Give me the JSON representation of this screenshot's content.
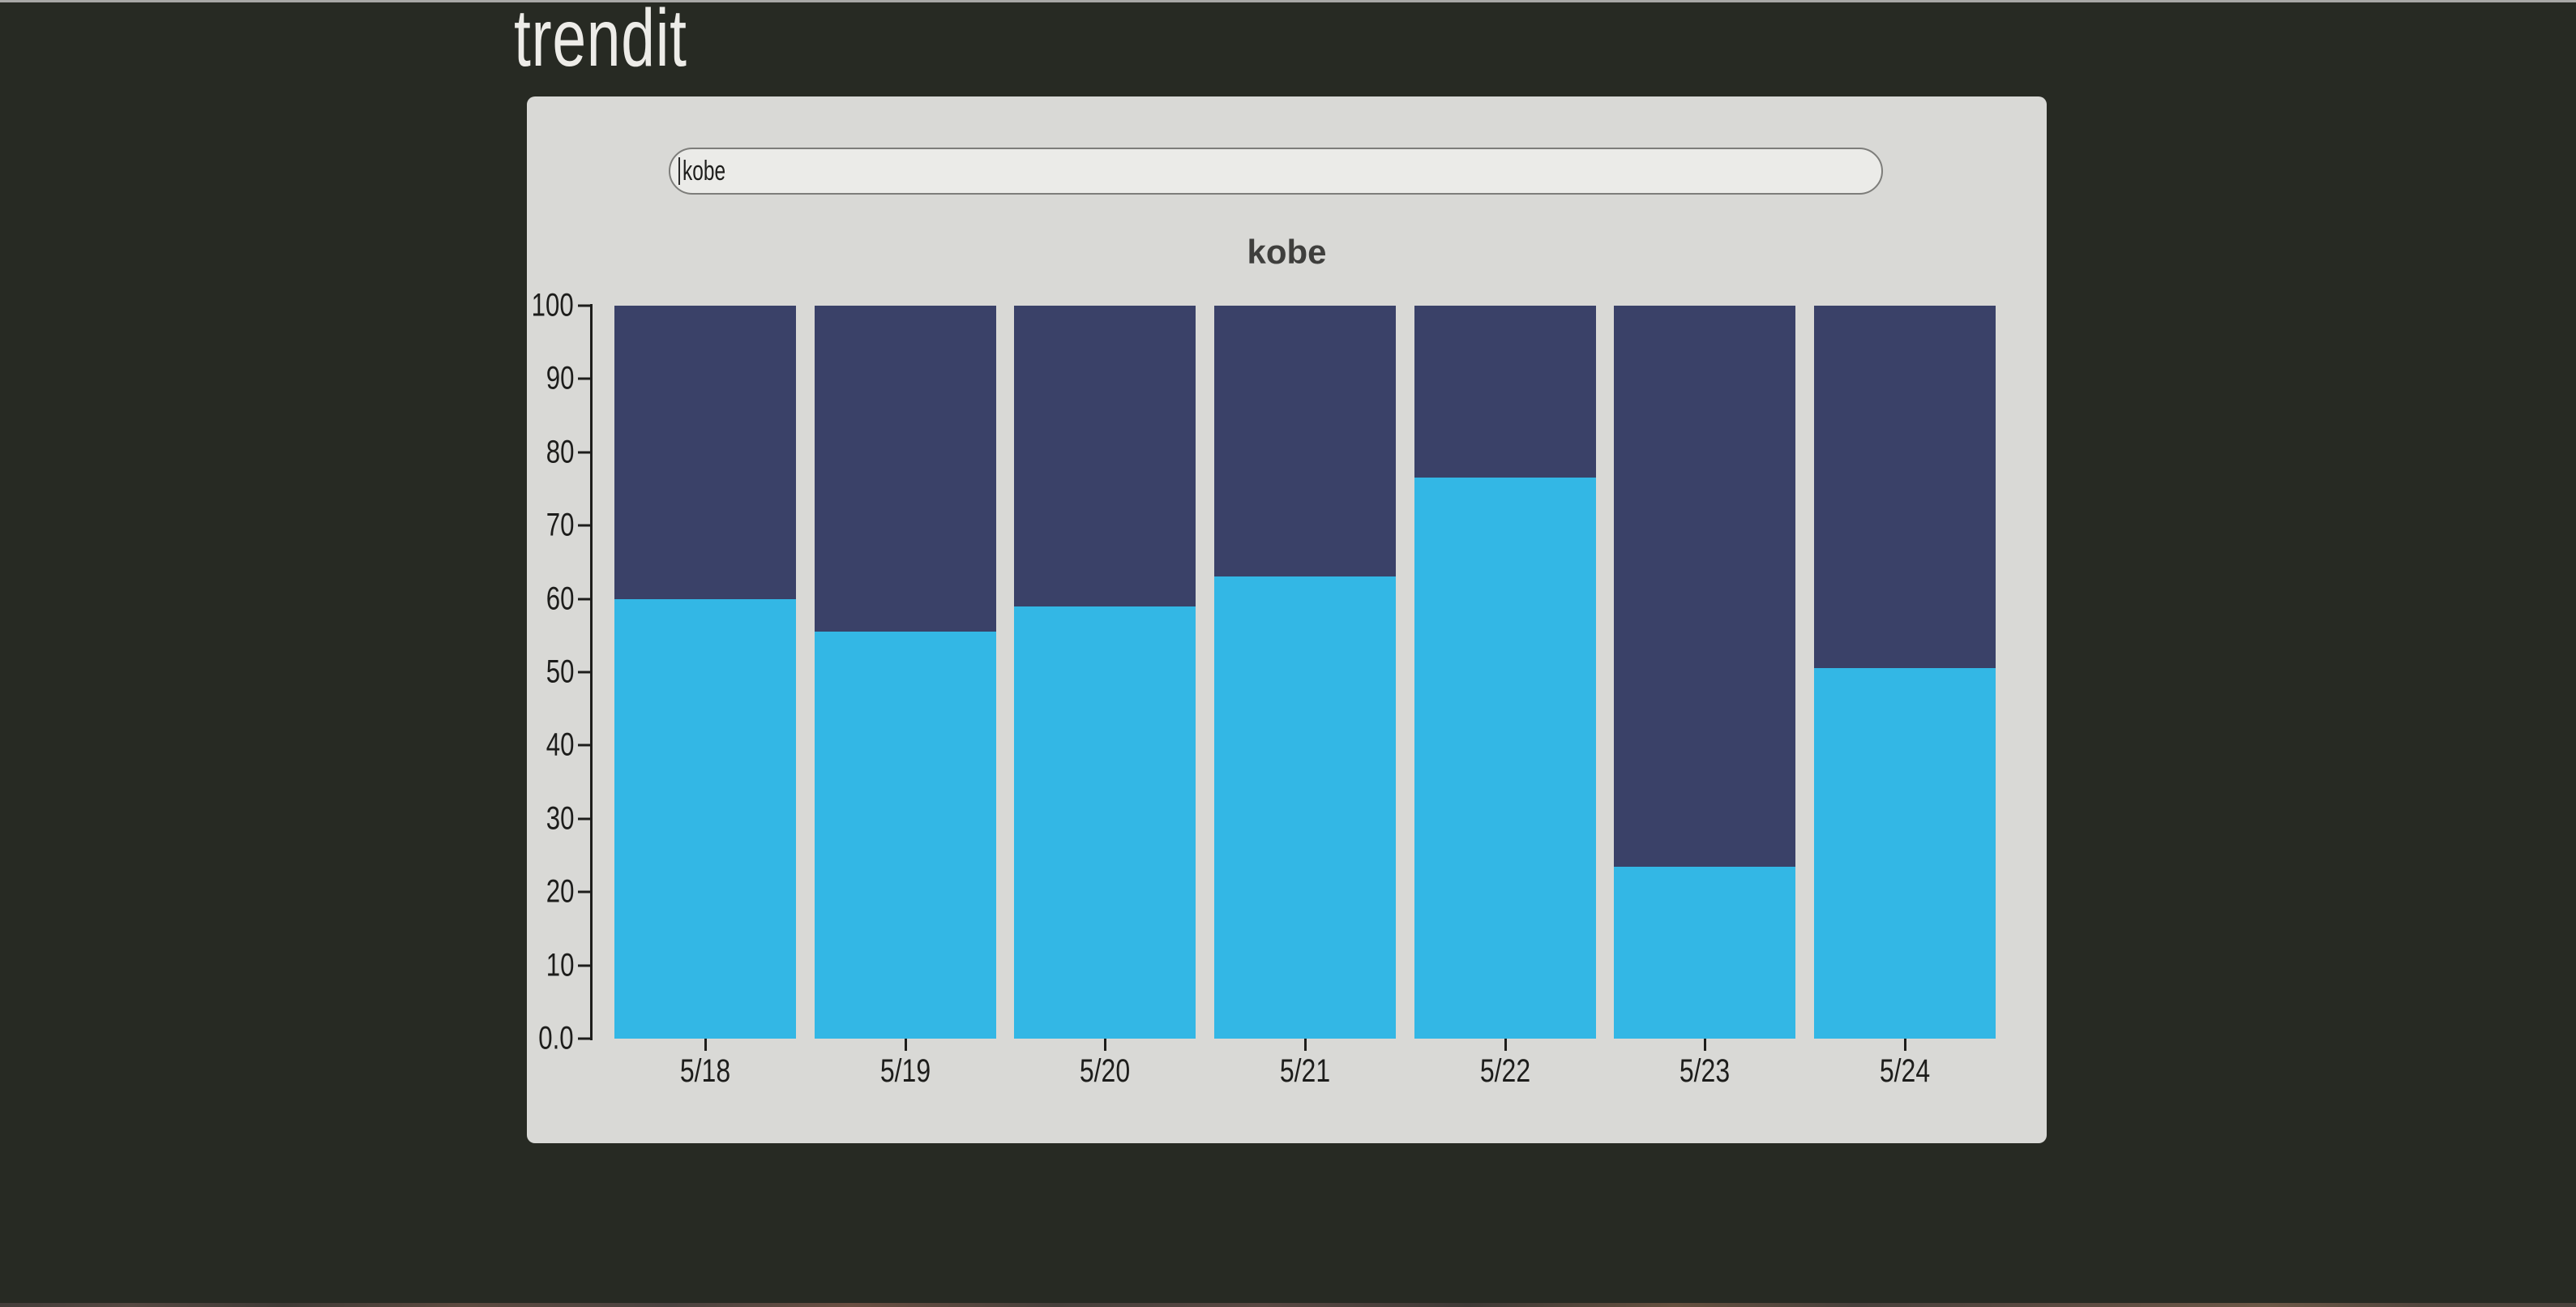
{
  "app": {
    "logo_text": "trendit"
  },
  "search": {
    "value": "kobe"
  },
  "chart": {
    "title": "kobe",
    "y_axis_tick_labels": [
      "100",
      "90",
      "80",
      "70",
      "60",
      "50",
      "40",
      "30",
      "20",
      "10",
      "0.0"
    ],
    "x_axis_tick_labels": [
      "5/18",
      "5/19",
      "5/20",
      "5/21",
      "5/22",
      "5/23",
      "5/24"
    ]
  },
  "chart_data": {
    "type": "bar",
    "stacked": true,
    "title": "kobe",
    "categories": [
      "5/18",
      "5/19",
      "5/20",
      "5/21",
      "5/22",
      "5/23",
      "5/24"
    ],
    "series": [
      {
        "name": "bottom-cyan-segment",
        "color": "#33b7e5",
        "values": [
          60,
          55.5,
          59,
          63,
          76.5,
          23.5,
          50.5
        ]
      },
      {
        "name": "top-navy-segment",
        "color": "#3a4168",
        "values": [
          40,
          44.5,
          41,
          37,
          23.5,
          76.5,
          49.5
        ]
      }
    ],
    "ylim": [
      0,
      100
    ],
    "xlabel": "",
    "ylabel": "",
    "grid": false,
    "legend": "none"
  },
  "colors": {
    "background": "#272a23",
    "card": "#d9d9d6",
    "input_background": "#ebebe8",
    "input_border": "#7d7d7a",
    "accent_cyan": "#33b7e5",
    "accent_navy": "#3a4168",
    "axis": "#1d1d1b",
    "logo_text": "#edece8",
    "title_text": "#3f3f3d"
  }
}
